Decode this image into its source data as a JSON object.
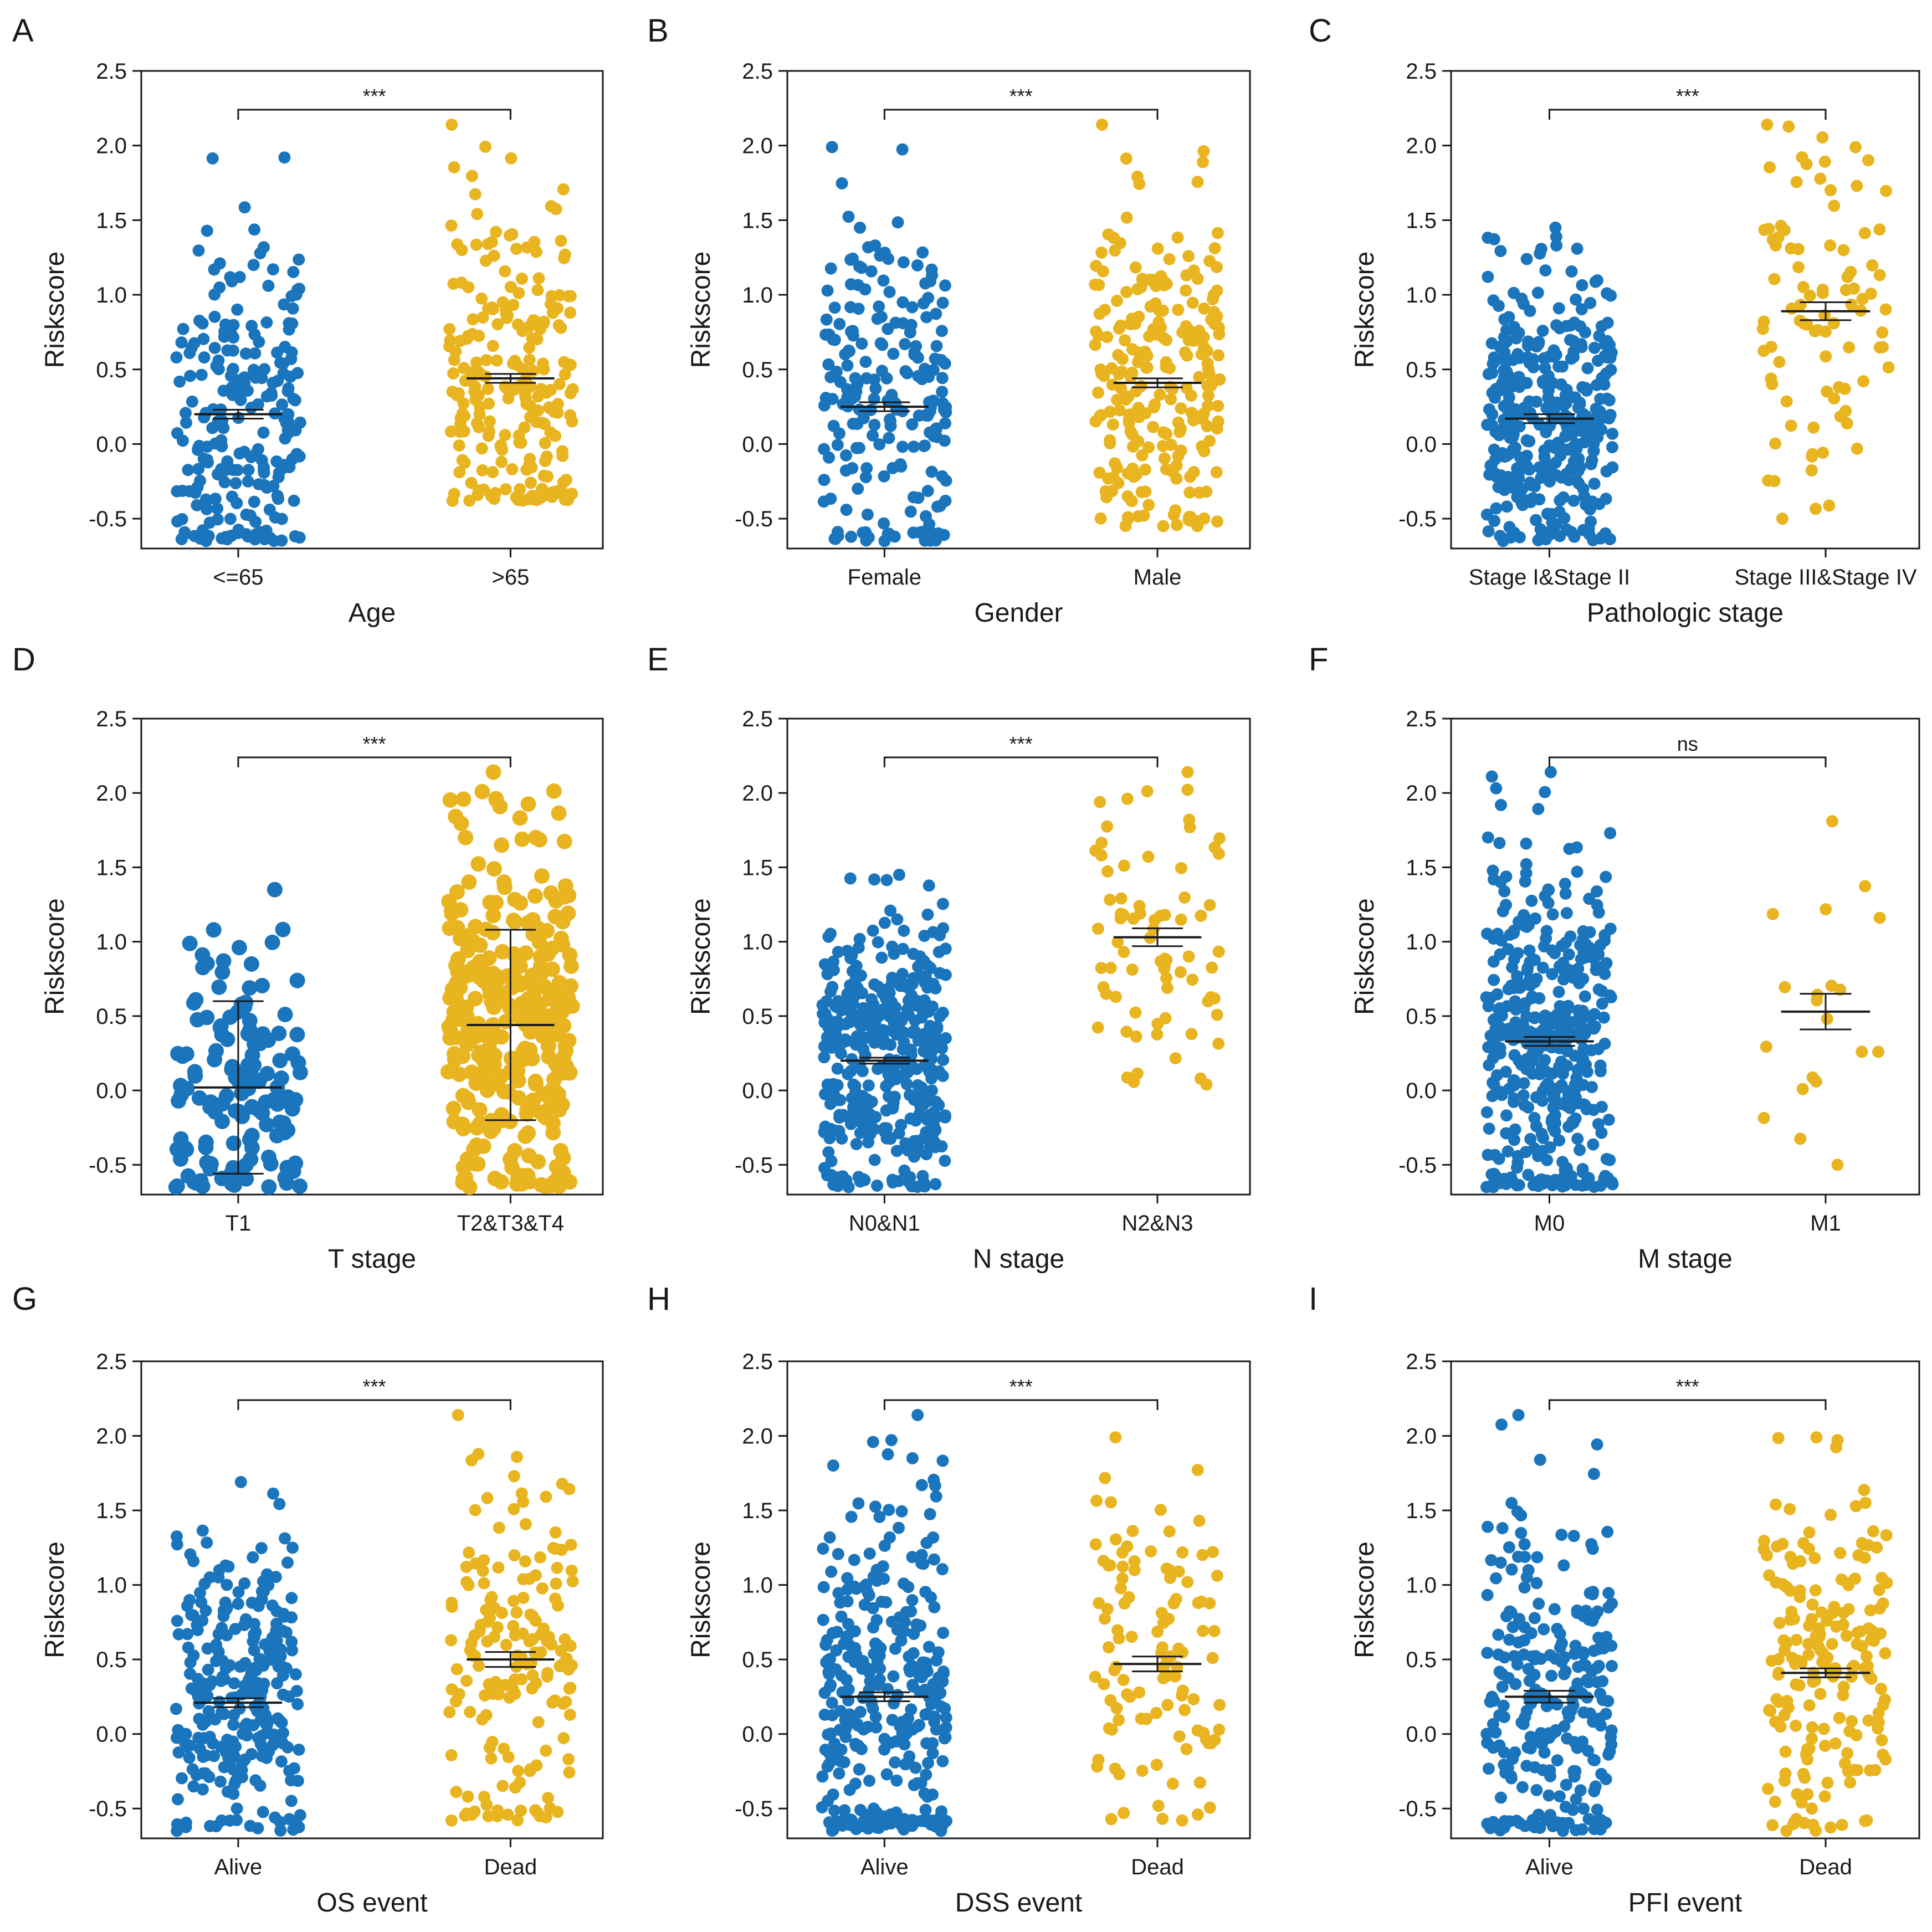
{
  "figure": {
    "colors": {
      "group1": "#1b75bc",
      "group2": "#e8b520",
      "axis": "#1a1a1a",
      "errorbar": "#1a1a1a"
    }
  },
  "chart_data": [
    {
      "letter": "A",
      "type": "scatter",
      "ylabel": "Riskscore",
      "xlabel": "Age",
      "categories": [
        "<=65",
        ">65"
      ],
      "n": [
        230,
        230
      ],
      "mean": [
        0.2,
        0.44
      ],
      "err": [
        0.03,
        0.03
      ],
      "range": [
        [
          -0.65,
          1.92
        ],
        [
          -0.38,
          2.14
        ]
      ],
      "significance": "***",
      "ylim": [
        -0.7,
        2.5
      ],
      "yticks": [
        -0.5,
        0.0,
        0.5,
        1.0,
        1.5,
        2.0,
        2.5
      ],
      "ytick_labels": [
        "-0.5",
        "0.0",
        "0.5",
        "1.0",
        "1.5",
        "2.0",
        "2.5"
      ]
    },
    {
      "letter": "B",
      "type": "scatter",
      "ylabel": "Riskscore",
      "xlabel": "Gender",
      "categories": [
        "Female",
        "Male"
      ],
      "n": [
        210,
        240
      ],
      "mean": [
        0.25,
        0.41
      ],
      "err": [
        0.03,
        0.03
      ],
      "range": [
        [
          -0.65,
          1.99
        ],
        [
          -0.55,
          2.14
        ]
      ],
      "significance": "***",
      "ylim": [
        -0.7,
        2.5
      ],
      "yticks": [
        -0.5,
        0.0,
        0.5,
        1.0,
        1.5,
        2.0,
        2.5
      ],
      "ytick_labels": [
        "-0.5",
        "0.0",
        "0.5",
        "1.0",
        "1.5",
        "2.0",
        "2.5"
      ]
    },
    {
      "letter": "C",
      "type": "scatter",
      "ylabel": "Riskscore",
      "xlabel": "Pathologic stage",
      "categories": [
        "Stage I&Stage II",
        "Stage III&Stage IV"
      ],
      "n": [
        360,
        90
      ],
      "mean": [
        0.17,
        0.89
      ],
      "err": [
        0.03,
        0.06
      ],
      "range": [
        [
          -0.65,
          1.45
        ],
        [
          -0.5,
          2.14
        ]
      ],
      "significance": "***",
      "ylim": [
        -0.7,
        2.5
      ],
      "yticks": [
        -0.5,
        0.0,
        0.5,
        1.0,
        1.5,
        2.0,
        2.5
      ],
      "ytick_labels": [
        "-0.5",
        "0.0",
        "0.5",
        "1.0",
        "1.5",
        "2.0",
        "2.5"
      ]
    },
    {
      "letter": "D",
      "type": "scatter",
      "ylabel": "Riskscore",
      "xlabel": "T stage",
      "categories": [
        "T1",
        "T2&T3&T4"
      ],
      "n": [
        140,
        320
      ],
      "mean": [
        0.02,
        0.44
      ],
      "err": [
        0.58,
        0.64
      ],
      "range": [
        [
          -0.65,
          1.35
        ],
        [
          -0.65,
          2.14
        ]
      ],
      "significance": "***",
      "ylim": [
        -0.7,
        2.5
      ],
      "yticks": [
        -0.5,
        0.0,
        0.5,
        1.0,
        1.5,
        2.0,
        2.5
      ],
      "ytick_labels": [
        "-0.5",
        "0.0",
        "0.5",
        "1.0",
        "1.5",
        "2.0",
        "2.5"
      ]
    },
    {
      "letter": "E",
      "type": "scatter",
      "ylabel": "Riskscore",
      "xlabel": "N stage",
      "categories": [
        "N0&N1",
        "N2&N3"
      ],
      "n": [
        380,
        75
      ],
      "mean": [
        0.2,
        1.03
      ],
      "err": [
        0.02,
        0.06
      ],
      "range": [
        [
          -0.65,
          1.45
        ],
        [
          0.04,
          2.14
        ]
      ],
      "significance": "***",
      "ylim": [
        -0.7,
        2.5
      ],
      "yticks": [
        -0.5,
        0.0,
        0.5,
        1.0,
        1.5,
        2.0,
        2.5
      ],
      "ytick_labels": [
        "-0.5",
        "0.0",
        "0.5",
        "1.0",
        "1.5",
        "2.0",
        "2.5"
      ]
    },
    {
      "letter": "F",
      "type": "scatter",
      "ylabel": "Riskscore",
      "xlabel": "M stage",
      "categories": [
        "M0",
        "M1"
      ],
      "n": [
        420,
        20
      ],
      "mean": [
        0.33,
        0.53
      ],
      "err": [
        0.03,
        0.12
      ],
      "range": [
        [
          -0.65,
          2.14
        ],
        [
          -0.5,
          1.81
        ]
      ],
      "significance": "ns",
      "ylim": [
        -0.7,
        2.5
      ],
      "yticks": [
        -0.5,
        0.0,
        0.5,
        1.0,
        1.5,
        2.0,
        2.5
      ],
      "ytick_labels": [
        "-0.5",
        "0.0",
        "0.5",
        "1.0",
        "1.5",
        "2.0",
        "2.5"
      ]
    },
    {
      "letter": "G",
      "type": "scatter",
      "ylabel": "Riskscore",
      "xlabel": "OS event",
      "categories": [
        "Alive",
        "Dead"
      ],
      "n": [
        270,
        170
      ],
      "mean": [
        0.21,
        0.5
      ],
      "err": [
        0.03,
        0.05
      ],
      "range": [
        [
          -0.65,
          1.69
        ],
        [
          -0.58,
          2.14
        ]
      ],
      "significance": "***",
      "ylim": [
        -0.7,
        2.5
      ],
      "yticks": [
        -0.5,
        0.0,
        0.5,
        1.0,
        1.5,
        2.0,
        2.5
      ],
      "ytick_labels": [
        "-0.5",
        "0.0",
        "0.5",
        "1.0",
        "1.5",
        "2.0",
        "2.5"
      ]
    },
    {
      "letter": "H",
      "type": "scatter",
      "ylabel": "Riskscore",
      "xlabel": "DSS event",
      "categories": [
        "Alive",
        "Dead"
      ],
      "n": [
        320,
        110
      ],
      "mean": [
        0.25,
        0.47
      ],
      "err": [
        0.03,
        0.05
      ],
      "range": [
        [
          -0.65,
          2.14
        ],
        [
          -0.58,
          1.99
        ]
      ],
      "significance": "***",
      "ylim": [
        -0.7,
        2.5
      ],
      "yticks": [
        -0.5,
        0.0,
        0.5,
        1.0,
        1.5,
        2.0,
        2.5
      ],
      "ytick_labels": [
        "-0.5",
        "0.0",
        "0.5",
        "1.0",
        "1.5",
        "2.0",
        "2.5"
      ]
    },
    {
      "letter": "I",
      "type": "scatter",
      "ylabel": "Riskscore",
      "xlabel": "PFI event",
      "categories": [
        "Alive",
        "Dead"
      ],
      "n": [
        260,
        190
      ],
      "mean": [
        0.25,
        0.41
      ],
      "err": [
        0.04,
        0.03
      ],
      "range": [
        [
          -0.65,
          2.14
        ],
        [
          -0.65,
          1.99
        ]
      ],
      "significance": "***",
      "ylim": [
        -0.7,
        2.5
      ],
      "yticks": [
        -0.5,
        0.0,
        0.5,
        1.0,
        1.5,
        2.0,
        2.5
      ],
      "ytick_labels": [
        "-0.5",
        "0.0",
        "0.5",
        "1.0",
        "1.5",
        "2.0",
        "2.5"
      ]
    }
  ]
}
